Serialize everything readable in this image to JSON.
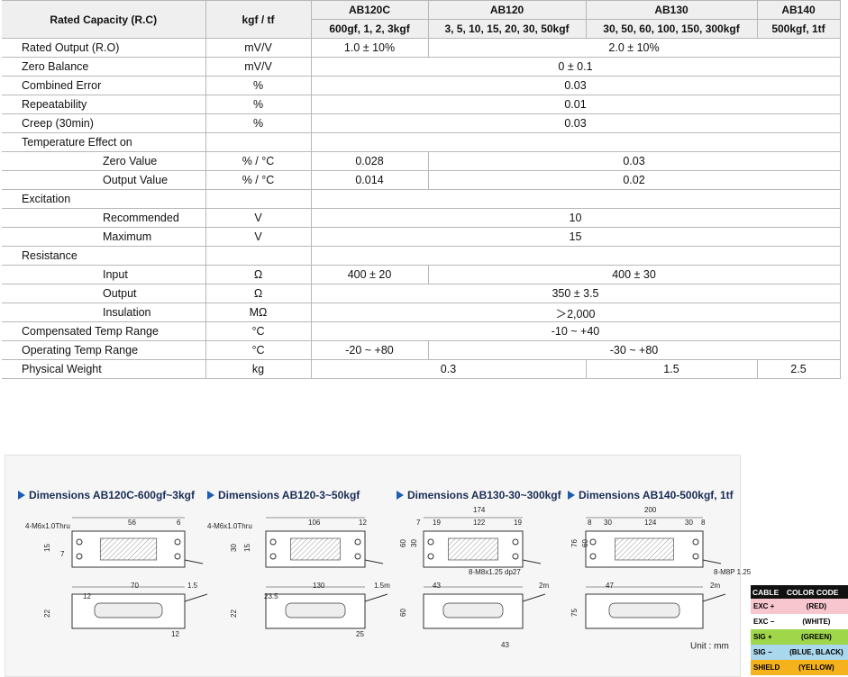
{
  "table": {
    "header": [
      "Rated Capacity (R.C)",
      "kgf / tf"
    ],
    "models": [
      {
        "name": "AB120C",
        "capacity": "600gf, 1, 2, 3kgf"
      },
      {
        "name": "AB120",
        "capacity": "3, 5, 10, 15, 20, 30, 50kgf"
      },
      {
        "name": "AB130",
        "capacity": "30, 50, 60, 100, 150, 300kgf"
      },
      {
        "name": "AB140",
        "capacity": "500kgf, 1tf"
      }
    ],
    "rows": [
      {
        "label": "Rated Output (R.O)",
        "unit": "mV/V",
        "cells": [
          {
            "text": "1.0 ± 10%",
            "span": 1
          },
          {
            "text": "2.0 ± 10%",
            "span": 3
          }
        ]
      },
      {
        "label": "Zero Balance",
        "unit": "mV/V",
        "cells": [
          {
            "text": "0 ± 0.1",
            "span": 4
          }
        ]
      },
      {
        "label": "Combined Error",
        "unit": "%",
        "cells": [
          {
            "text": "0.03",
            "span": 4
          }
        ]
      },
      {
        "label": "Repeatability",
        "unit": "%",
        "cells": [
          {
            "text": "0.01",
            "span": 4
          }
        ]
      },
      {
        "label": "Creep (30min)",
        "unit": "%",
        "cells": [
          {
            "text": "0.03",
            "span": 4
          }
        ]
      },
      {
        "label": "Temperature Effect on",
        "cells": []
      },
      {
        "label": "Zero Value",
        "level": 1,
        "unit": "% / °C",
        "cells": [
          {
            "text": "0.028",
            "span": 1
          },
          {
            "text": "0.03",
            "span": 3
          }
        ]
      },
      {
        "label": "Output Value",
        "level": 1,
        "unit": "% / °C",
        "cells": [
          {
            "text": "0.014",
            "span": 1
          },
          {
            "text": "0.02",
            "span": 3
          }
        ]
      },
      {
        "label": "Excitation",
        "cells": []
      },
      {
        "label": "Recommended",
        "level": 1,
        "unit": "V",
        "cells": [
          {
            "text": "10",
            "span": 4
          }
        ]
      },
      {
        "label": "Maximum",
        "level": 1,
        "unit": "V",
        "cells": [
          {
            "text": "15",
            "span": 4
          }
        ]
      },
      {
        "label": "Resistance",
        "cells": []
      },
      {
        "label": "Input",
        "level": 1,
        "unit": "Ω",
        "cells": [
          {
            "text": "400 ± 20",
            "span": 1
          },
          {
            "text": "400 ± 30",
            "span": 3
          }
        ]
      },
      {
        "label": "Output",
        "level": 1,
        "unit": "Ω",
        "cells": [
          {
            "text": "350 ± 3.5",
            "span": 4
          }
        ]
      },
      {
        "label": "Insulation",
        "level": 1,
        "unit": "MΩ",
        "cells": [
          {
            "text": "＞2,000",
            "span": 4
          }
        ]
      },
      {
        "label": "Compensated Temp Range",
        "unit": "°C",
        "cells": [
          {
            "text": "-10 ~ +40",
            "span": 4
          }
        ]
      },
      {
        "label": "Operating Temp Range",
        "unit": "°C",
        "cells": [
          {
            "text": "-20 ~ +80",
            "span": 1
          },
          {
            "text": "-30 ~ +80",
            "span": 3
          }
        ]
      },
      {
        "label": "Physical Weight",
        "unit": "kg",
        "cells": [
          {
            "text": "0.3",
            "span": 2
          },
          {
            "text": "1.5",
            "span": 1
          },
          {
            "text": "2.5",
            "span": 1
          }
        ]
      }
    ]
  },
  "drawings": [
    {
      "title": "Dimensions AB120C-600gf~3kgf",
      "labels": [
        "4-M6x1.0Thru",
        "56",
        "6",
        "15",
        "7",
        "70",
        "1.5",
        "12",
        "22",
        "12"
      ]
    },
    {
      "title": "Dimensions AB120-3~50kgf",
      "labels": [
        "4-M6x1.0Thru",
        "106",
        "12",
        "30",
        "15",
        "130",
        "1.5m",
        "23.5",
        "22",
        "25"
      ]
    },
    {
      "title": "Dimensions AB130-30~300kgf",
      "labels": [
        "174",
        "7",
        "19",
        "122",
        "19",
        "60",
        "30",
        "8-M8x1.25 dp27",
        "43",
        "2m",
        "60",
        "43"
      ]
    },
    {
      "title": "Dimensions AB140-500kgf, 1tf",
      "labels": [
        "200",
        "8",
        "30",
        "124",
        "30",
        "8",
        "76",
        "60",
        "8-M8P 1.25",
        "47",
        "2m",
        "75"
      ]
    }
  ],
  "unit_note": "Unit : mm",
  "cable": {
    "title": [
      "CABLE",
      "COLOR CODE"
    ],
    "rows": [
      {
        "signal": "EXC +",
        "wire": "(RED)",
        "color": "#f7c6cf"
      },
      {
        "signal": "EXC −",
        "wire": "(WHITE)",
        "color": "#ffffff"
      },
      {
        "signal": "SIG +",
        "wire": "(GREEN)",
        "color": "#9fd64a"
      },
      {
        "signal": "SIG −",
        "wire": "(BLUE, BLACK)",
        "color": "#a9d7ec"
      },
      {
        "signal": "SHIELD",
        "wire": "(YELLOW)",
        "color": "#f6b21c"
      }
    ]
  }
}
